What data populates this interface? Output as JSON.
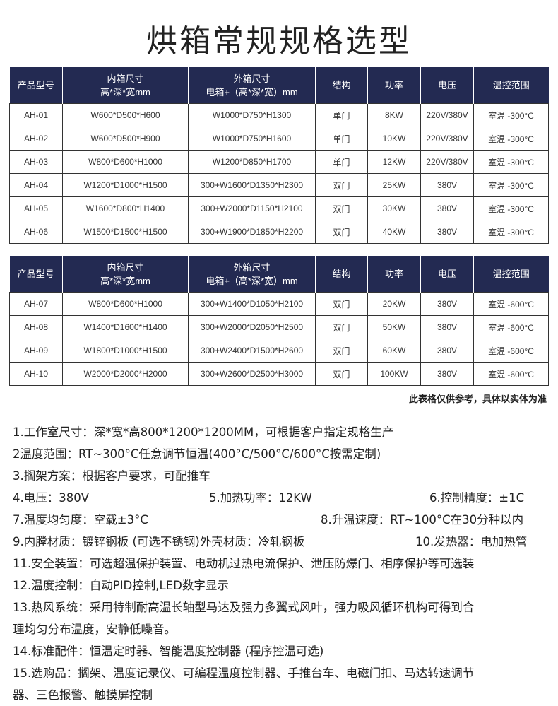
{
  "title": "烘箱常规规格选型",
  "headers": [
    "产品型号",
    "内箱尺寸",
    "高*深*宽mm",
    "外箱尺寸",
    "电箱+（高*深*宽）mm",
    "结构",
    "功率",
    "电压",
    "温控范围"
  ],
  "table1": [
    [
      "AH-01",
      "W600*D500*H600",
      "W1000*D750*H1300",
      "单门",
      "8KW",
      "220V/380V",
      "室温 -300°C"
    ],
    [
      "AH-02",
      "W600*D500*H900",
      "W1000*D750*H1600",
      "单门",
      "10KW",
      "220V/380V",
      "室温 -300°C"
    ],
    [
      "AH-03",
      "W800*D600*H1000",
      "W1200*D850*H1700",
      "单门",
      "12KW",
      "220V/380V",
      "室温 -300°C"
    ],
    [
      "AH-04",
      "W1200*D1000*H1500",
      "300+W1600*D1350*H2300",
      "双门",
      "25KW",
      "380V",
      "室温 -300°C"
    ],
    [
      "AH-05",
      "W1600*D800*H1400",
      "300+W2000*D1150*H2100",
      "双门",
      "30KW",
      "380V",
      "室温 -300°C"
    ],
    [
      "AH-06",
      "W1500*D1500*H1500",
      "300+W1900*D1850*H2200",
      "双门",
      "40KW",
      "380V",
      "室温 -300°C"
    ]
  ],
  "table2": [
    [
      "AH-07",
      "W800*D600*H1000",
      "300+W1400*D1050*H2100",
      "双门",
      "20KW",
      "380V",
      "室温 -600°C"
    ],
    [
      "AH-08",
      "W1400*D1600*H1400",
      "300+W2000*D2050*H2500",
      "双门",
      "50KW",
      "380V",
      "室温 -600°C"
    ],
    [
      "AH-09",
      "W1800*D1000*H1500",
      "300+W2400*D1500*H2600",
      "双门",
      "60KW",
      "380V",
      "室温 -600°C"
    ],
    [
      "AH-10",
      "W2000*D2000*H2000",
      "300+W2600*D2500*H3000",
      "双门",
      "100KW",
      "380V",
      "室温 -600°C"
    ]
  ],
  "note": "此表格仅供参考，具体以实体为准",
  "specs": {
    "l1": "1.工作室尺寸：深*宽*高800*1200*1200MM，可根据客户指定规格生产",
    "l2": "2温度范围：RT~300°C任意调节恒温(400°C/500°C/600°C按需定制)",
    "l3": "3.搁架方案：根据客户要求，可配推车",
    "l4a": "4.电压：380V",
    "l4b": "5.加热功率：12KW",
    "l4c": "6.控制精度：±1C",
    "l5a": "7.温度均匀度：空载±3°C",
    "l5b": "8.升温速度：RT~100°C在30分种以内",
    "l6a": "9.内膛材质：镀锌钢板 (可选不锈钢)外壳材质：冷轧钢板",
    "l6b": "10.发热器：电加热管",
    "l7": "11.安全装置：可选超温保护装置、电动机过热电流保护、泄压防爆门、相序保护等可选装",
    "l8": "12.温度控制：自动PID控制,LED数字显示",
    "l9": "13.热风系统：采用特制耐高温长轴型马达及强力多翼式风叶，强力吸风循环机构可得到合",
    "l10": "理均匀分布温度，安静低噪音。",
    "l11": "14.标准配件：恒温定时器、智能温度控制器 (程序控温可选)",
    "l12": "15.选购品：搁架、温度记录仪、可编程温度控制器、手推台车、电磁门扣、马达转速调节",
    "l13": "器、三色报警、触摸屏控制"
  }
}
